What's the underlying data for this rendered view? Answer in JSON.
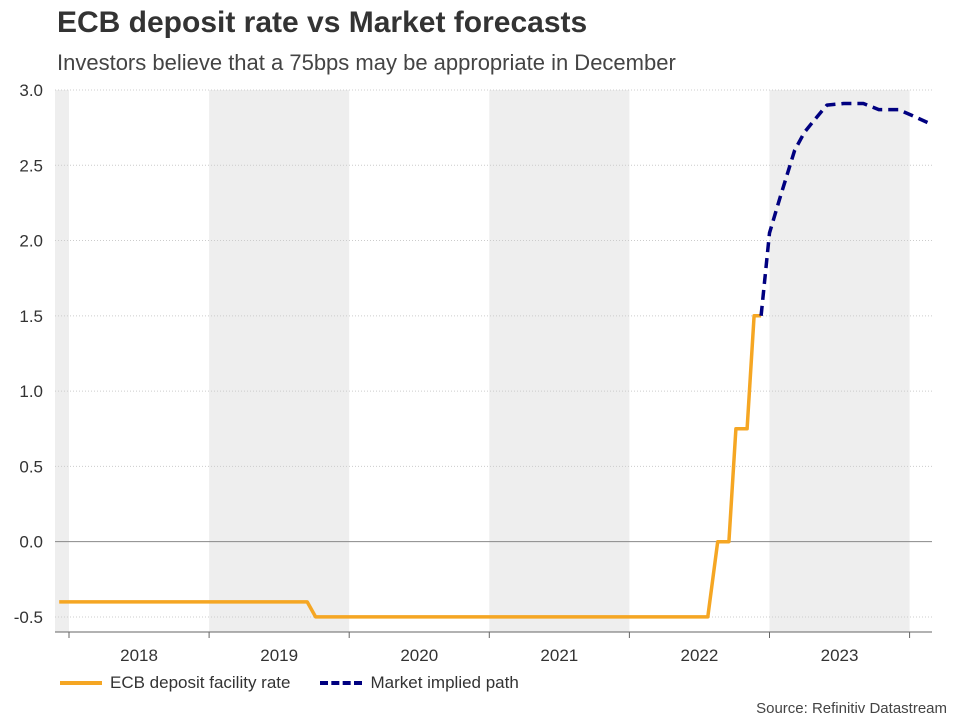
{
  "title": "ECB deposit rate vs Market forecasts",
  "subtitle": "Investors believe that a 75bps may be appropriate in December",
  "source": "Source: Refinitiv Datastream",
  "colors": {
    "ecb": "#f5a623",
    "market": "#000080",
    "shade": "#eeeeee",
    "grid": "#cccccc",
    "zero": "#888888"
  },
  "chart_data": {
    "type": "line",
    "title": "ECB deposit rate vs Market forecasts",
    "subtitle": "Investors believe that a 75bps may be appropriate in December",
    "xlabel": "",
    "ylabel": "",
    "xlim": [
      2017.9,
      2024.16
    ],
    "ylim": [
      -0.6,
      3.0
    ],
    "yticks": [
      -0.5,
      0.0,
      0.5,
      1.0,
      1.5,
      2.0,
      2.5,
      3.0
    ],
    "ytick_labels": [
      "-0.5",
      "0.0",
      "0.5",
      "1.0",
      "1.5",
      "2.0",
      "2.5",
      "3.0"
    ],
    "year_labels": [
      "2018",
      "2019",
      "2020",
      "2021",
      "2022",
      "2023"
    ],
    "shaded_years": [
      "2019",
      "2021",
      "2023"
    ],
    "series": [
      {
        "name": "ECB deposit facility rate",
        "style": "solid",
        "x": [
          2017.93,
          2019.7,
          2019.76,
          2022.56,
          2022.63,
          2022.71,
          2022.76,
          2022.84,
          2022.89,
          2022.94
        ],
        "y": [
          -0.4,
          -0.4,
          -0.5,
          -0.5,
          0.0,
          0.0,
          0.75,
          0.75,
          1.5,
          1.5
        ]
      },
      {
        "name": "Market implied path",
        "style": "dashed",
        "x": [
          2022.94,
          2023.0,
          2023.08,
          2023.18,
          2023.25,
          2023.32,
          2023.41,
          2023.53,
          2023.67,
          2023.78,
          2023.92,
          2024.02,
          2024.16
        ],
        "y": [
          1.5,
          2.05,
          2.3,
          2.6,
          2.72,
          2.8,
          2.9,
          2.91,
          2.91,
          2.87,
          2.87,
          2.83,
          2.77
        ]
      }
    ],
    "legend": [
      "ECB deposit facility rate",
      "Market implied path"
    ],
    "legend_position": "bottom-left",
    "grid": true
  }
}
